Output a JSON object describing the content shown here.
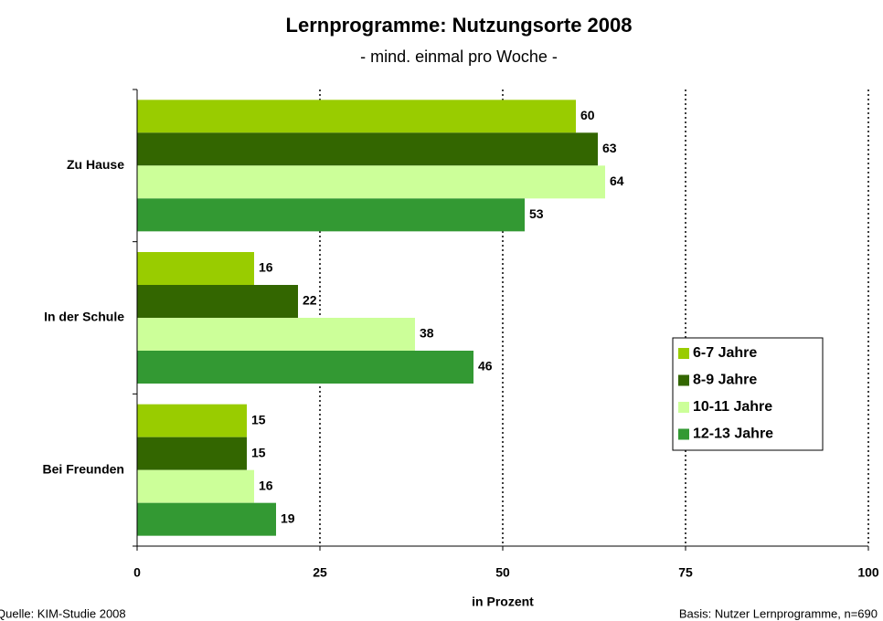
{
  "chart_data": {
    "type": "barh",
    "title": "Lernprogramme: Nutzungsorte 2008",
    "subtitle": "- mind. einmal pro Woche -",
    "xlabel": "in Prozent",
    "source": "Quelle: KIM-Studie 2008",
    "note": "Basis: Nutzer Lernprogramme, n=690",
    "categories": [
      "Zu Hause",
      "In der Schule",
      "Bei Freunden"
    ],
    "series": [
      {
        "name": "6-7 Jahre",
        "color": "#99cc00",
        "values": [
          60,
          16,
          15
        ]
      },
      {
        "name": "8-9 Jahre",
        "color": "#336600",
        "values": [
          63,
          22,
          15
        ]
      },
      {
        "name": "10-11 Jahre",
        "color": "#ccff99",
        "values": [
          64,
          38,
          16
        ]
      },
      {
        "name": "12-13 Jahre",
        "color": "#339933",
        "values": [
          53,
          46,
          19
        ]
      }
    ],
    "xlim": [
      0,
      100
    ],
    "xticks": [
      0,
      25,
      50,
      75,
      100
    ],
    "grid": true,
    "legend": "right"
  }
}
